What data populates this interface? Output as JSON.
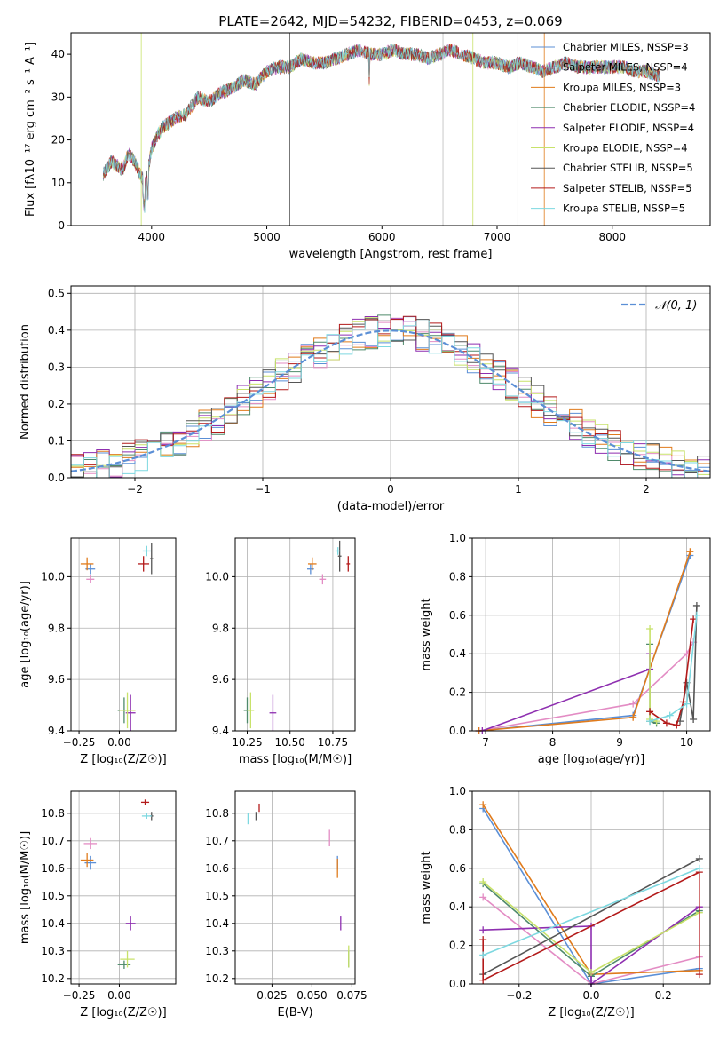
{
  "figure_title": "PLATE=2642, MJD=54232, FIBERID=0453, z=0.069",
  "colors": {
    "Chabrier MILES": "#5b8fd6",
    "Salpeter MILES": "#e38cc4",
    "Kroupa MILES": "#e07b1c",
    "Chabrier ELODIE": "#4f8a6b",
    "Salpeter ELODIE": "#8e2fb0",
    "Kroupa ELODIE": "#c8e26a",
    "Chabrier STELIB": "#555555",
    "Salpeter STELIB": "#b31a1a",
    "Kroupa STELIB": "#7dd8e0",
    "normal": "#5b8fd6"
  },
  "chart_data": [
    {
      "type": "line",
      "title": "PLATE=2642, MJD=54232, FIBERID=0453, z=0.069",
      "xlabel": "wavelength [Angstrom, rest frame]",
      "ylabel": "Flux [fλ10⁻¹⁷ erg cm⁻² s⁻¹ A⁻¹]",
      "xlim": [
        3300,
        8850
      ],
      "ylim": [
        0,
        45
      ],
      "xticks": [
        "4000",
        "5000",
        "6000",
        "7000",
        "8000"
      ],
      "yticks": [
        "0",
        "10",
        "20",
        "30",
        "40"
      ],
      "legend_placement": "upper-right",
      "legend": [
        "Chabrier MILES, NSSP=3",
        "Salpeter MILES, NSSP=4",
        "Kroupa MILES, NSSP=3",
        "Chabrier ELODIE, NSSP=4",
        "Salpeter ELODIE, NSSP=4",
        "Kroupa ELODIE, NSSP=4",
        "Chabrier STELIB, NSSP=5",
        "Salpeter STELIB, NSSP=5",
        "Kroupa STELIB, NSSP=5"
      ],
      "spectrum": {
        "x": [
          3580,
          3650,
          3700,
          3750,
          3800,
          3850,
          3900,
          3950,
          4000,
          4050,
          4100,
          4200,
          4300,
          4400,
          4500,
          4600,
          4700,
          4800,
          4900,
          5000,
          5100,
          5200,
          5300,
          5400,
          5500,
          5600,
          5700,
          5800,
          5900,
          6000,
          6100,
          6200,
          6300,
          6400,
          6500,
          6600,
          6700,
          6800,
          6900,
          7000,
          7100,
          7200,
          7300,
          7400,
          7500,
          7600,
          7700,
          7800,
          7900,
          8000,
          8100,
          8200,
          8300,
          8400
        ],
        "y": [
          12,
          15,
          14,
          13,
          17,
          15,
          12,
          10,
          18,
          21,
          23,
          25,
          26,
          30,
          29,
          31,
          32,
          34,
          33,
          36,
          37,
          37,
          39,
          38,
          38,
          39,
          40,
          41,
          40,
          40,
          41,
          40,
          40,
          39,
          40,
          41,
          40,
          39,
          38,
          38,
          37,
          38,
          37,
          36,
          37,
          38,
          37,
          37,
          37,
          37,
          37,
          36,
          36,
          35
        ]
      }
    },
    {
      "type": "histogram",
      "xlabel": "(data-model)/error",
      "ylabel": "Normed distribution",
      "xlim": [
        -2.5,
        2.5
      ],
      "ylim": [
        0,
        0.52
      ],
      "xticks": [
        "−2",
        "−1",
        "0",
        "1",
        "2"
      ],
      "yticks": [
        "0.0",
        "0.1",
        "0.2",
        "0.3",
        "0.4",
        "0.5"
      ],
      "grid": true,
      "legend_placement": "upper-right",
      "legend": [
        "𝒩(0, 1)"
      ],
      "bin_width": 0.1
    },
    {
      "type": "scatter",
      "xlabel": "Z [log₁₀(Z/Z☉)]",
      "ylabel": "age  [log₁₀(age/yr)]",
      "xlim": [
        -0.3,
        0.35
      ],
      "ylim": [
        9.4,
        10.15
      ],
      "xticks": [
        "−0.25",
        "0.00"
      ],
      "yticks": [
        "9.4",
        "9.6",
        "9.8",
        "10.0"
      ],
      "grid": true,
      "points": [
        {
          "s": "Chabrier MILES",
          "x": -0.18,
          "y": 10.03,
          "xe": 0.06,
          "ye": 0.04
        },
        {
          "s": "Salpeter MILES",
          "x": -0.18,
          "y": 9.99,
          "xe": 0.05,
          "ye": 0.03
        },
        {
          "s": "Kroupa MILES",
          "x": -0.2,
          "y": 10.05,
          "xe": 0.08,
          "ye": 0.05
        },
        {
          "s": "Chabrier ELODIE",
          "x": 0.03,
          "y": 9.48,
          "xe": 0.08,
          "ye": 0.1
        },
        {
          "s": "Salpeter ELODIE",
          "x": 0.07,
          "y": 9.47,
          "xe": 0.06,
          "ye": 0.14
        },
        {
          "s": "Kroupa ELODIE",
          "x": 0.05,
          "y": 9.48,
          "xe": 0.1,
          "ye": 0.14
        },
        {
          "s": "Chabrier STELIB",
          "x": 0.2,
          "y": 10.07,
          "xe": 0.02,
          "ye": 0.12
        },
        {
          "s": "Salpeter STELIB",
          "x": 0.15,
          "y": 10.05,
          "xe": 0.07,
          "ye": 0.06
        },
        {
          "s": "Kroupa STELIB",
          "x": 0.17,
          "y": 10.1,
          "xe": 0.05,
          "ye": 0.04
        }
      ]
    },
    {
      "type": "scatter",
      "xlabel": "mass [log₁₀(M/M☉)]",
      "ylabel": "",
      "xlim": [
        10.18,
        10.88
      ],
      "ylim": [
        9.4,
        10.15
      ],
      "xticks": [
        "10.25",
        "10.50",
        "10.75"
      ],
      "yticks": [
        "9.4",
        "9.6",
        "9.8",
        "10.0"
      ],
      "grid": true,
      "points": [
        {
          "s": "Chabrier MILES",
          "x": 10.62,
          "y": 10.03,
          "xe": 0.04,
          "ye": 0.04
        },
        {
          "s": "Salpeter MILES",
          "x": 10.69,
          "y": 9.99,
          "xe": 0.04,
          "ye": 0.04
        },
        {
          "s": "Kroupa MILES",
          "x": 10.63,
          "y": 10.05,
          "xe": 0.05,
          "ye": 0.05
        },
        {
          "s": "Chabrier ELODIE",
          "x": 10.25,
          "y": 9.48,
          "xe": 0.04,
          "ye": 0.1
        },
        {
          "s": "Salpeter ELODIE",
          "x": 10.4,
          "y": 9.47,
          "xe": 0.04,
          "ye": 0.14
        },
        {
          "s": "Kroupa ELODIE",
          "x": 10.27,
          "y": 9.48,
          "xe": 0.04,
          "ye": 0.14
        },
        {
          "s": "Chabrier STELIB",
          "x": 10.79,
          "y": 10.08,
          "xe": 0.02,
          "ye": 0.12
        },
        {
          "s": "Salpeter STELIB",
          "x": 10.84,
          "y": 10.05,
          "xe": 0.02,
          "ye": 0.06
        },
        {
          "s": "Kroupa STELIB",
          "x": 10.78,
          "y": 10.1,
          "xe": 0.03,
          "ye": 0.03
        }
      ]
    },
    {
      "type": "line",
      "xlabel": "age  [log₁₀(age/yr)]",
      "ylabel": "mass weight",
      "xlim": [
        6.8,
        10.35
      ],
      "ylim": [
        0,
        1.0
      ],
      "xticks": [
        "7",
        "8",
        "9",
        "10"
      ],
      "yticks": [
        "0.0",
        "0.2",
        "0.4",
        "0.6",
        "0.8",
        "1.0"
      ],
      "grid": true,
      "series": [
        {
          "s": "Chabrier MILES",
          "x": [
            6.9,
            9.2,
            10.05
          ],
          "y": [
            0.0,
            0.08,
            0.91
          ]
        },
        {
          "s": "Salpeter MILES",
          "x": [
            6.9,
            9.2,
            10.0,
            10.1
          ],
          "y": [
            0.0,
            0.14,
            0.4,
            0.46
          ]
        },
        {
          "s": "Kroupa MILES",
          "x": [
            6.9,
            9.2,
            10.05
          ],
          "y": [
            0.0,
            0.07,
            0.93
          ]
        },
        {
          "s": "Chabrier ELODIE",
          "x": [
            9.45,
            9.45,
            9.55
          ],
          "y": [
            0.45,
            0.05,
            0.04
          ]
        },
        {
          "s": "Salpeter ELODIE",
          "x": [
            6.95,
            9.45,
            9.45
          ],
          "y": [
            0.0,
            0.32,
            0.4
          ]
        },
        {
          "s": "Kroupa ELODIE",
          "x": [
            9.45,
            9.45,
            9.55
          ],
          "y": [
            0.53,
            0.06,
            0.05
          ]
        },
        {
          "s": "Chabrier STELIB",
          "x": [
            9.9,
            10.0,
            10.1,
            10.15
          ],
          "y": [
            0.05,
            0.25,
            0.06,
            0.65
          ]
        },
        {
          "s": "Salpeter STELIB",
          "x": [
            9.45,
            9.7,
            9.85,
            9.95,
            10.1
          ],
          "y": [
            0.1,
            0.04,
            0.03,
            0.15,
            0.58
          ]
        },
        {
          "s": "Kroupa STELIB",
          "x": [
            9.45,
            9.75,
            10.0,
            10.15
          ],
          "y": [
            0.05,
            0.08,
            0.14,
            0.6
          ]
        }
      ]
    },
    {
      "type": "scatter",
      "xlabel": "Z [log₁₀(Z/Z☉)]",
      "ylabel": "mass [log₁₀(M/M☉)]",
      "xlim": [
        -0.3,
        0.35
      ],
      "ylim": [
        10.18,
        10.88
      ],
      "xticks": [
        "−0.25",
        "0.00"
      ],
      "yticks": [
        "10.2",
        "10.3",
        "10.4",
        "10.5",
        "10.6",
        "10.7",
        "10.8"
      ],
      "grid": true,
      "points": [
        {
          "s": "Chabrier MILES",
          "x": -0.18,
          "y": 10.62,
          "xe": 0.07,
          "ye": 0.05
        },
        {
          "s": "Salpeter MILES",
          "x": -0.18,
          "y": 10.69,
          "xe": 0.08,
          "ye": 0.04
        },
        {
          "s": "Kroupa MILES",
          "x": -0.2,
          "y": 10.63,
          "xe": 0.08,
          "ye": 0.05
        },
        {
          "s": "Chabrier ELODIE",
          "x": 0.03,
          "y": 10.25,
          "xe": 0.08,
          "ye": 0.03
        },
        {
          "s": "Salpeter ELODIE",
          "x": 0.07,
          "y": 10.4,
          "xe": 0.06,
          "ye": 0.05
        },
        {
          "s": "Kroupa ELODIE",
          "x": 0.05,
          "y": 10.27,
          "xe": 0.09,
          "ye": 0.06
        },
        {
          "s": "Chabrier STELIB",
          "x": 0.2,
          "y": 10.79,
          "xe": 0.02,
          "ye": 0.03
        },
        {
          "s": "Salpeter STELIB",
          "x": 0.16,
          "y": 10.84,
          "xe": 0.05,
          "ye": 0.02
        },
        {
          "s": "Kroupa STELIB",
          "x": 0.17,
          "y": 10.79,
          "xe": 0.06,
          "ye": 0.02
        }
      ]
    },
    {
      "type": "scatter",
      "xlabel": "E(B-V)",
      "ylabel": "",
      "xlim": [
        0.002,
        0.077
      ],
      "ylim": [
        10.18,
        10.88
      ],
      "xticks": [
        "0.025",
        "0.050",
        "0.075"
      ],
      "yticks": [
        "10.2",
        "10.3",
        "10.4",
        "10.5",
        "10.6",
        "10.7",
        "10.8"
      ],
      "grid": true,
      "points": [
        {
          "s": "Chabrier MILES",
          "x": 0.066,
          "y": 10.62,
          "xe": 0,
          "ye": 0.05
        },
        {
          "s": "Salpeter MILES",
          "x": 0.061,
          "y": 10.71,
          "xe": 0,
          "ye": 0.06
        },
        {
          "s": "Kroupa MILES",
          "x": 0.066,
          "y": 10.6,
          "xe": 0,
          "ye": 0.07
        },
        {
          "s": "Chabrier ELODIE",
          "x": 0.073,
          "y": 10.27,
          "xe": 0,
          "ye": 0.06
        },
        {
          "s": "Salpeter ELODIE",
          "x": 0.068,
          "y": 10.4,
          "xe": 0,
          "ye": 0.05
        },
        {
          "s": "Kroupa ELODIE",
          "x": 0.073,
          "y": 10.28,
          "xe": 0,
          "ye": 0.08
        },
        {
          "s": "Chabrier STELIB",
          "x": 0.015,
          "y": 10.79,
          "xe": 0,
          "ye": 0.03
        },
        {
          "s": "Salpeter STELIB",
          "x": 0.017,
          "y": 10.82,
          "xe": 0,
          "ye": 0.03
        },
        {
          "s": "Kroupa STELIB",
          "x": 0.01,
          "y": 10.78,
          "xe": 0,
          "ye": 0.04
        }
      ]
    },
    {
      "type": "line",
      "xlabel": "Z [log₁₀(Z/Z☉)]",
      "ylabel": "mass weight",
      "xlim": [
        -0.33,
        0.33
      ],
      "ylim": [
        0,
        1.0
      ],
      "xticks": [
        "−0.2",
        "0.0",
        "0.2"
      ],
      "yticks": [
        "0.0",
        "0.2",
        "0.4",
        "0.6",
        "0.8",
        "1.0"
      ],
      "grid": true,
      "series": [
        {
          "s": "Chabrier MILES",
          "x": [
            -0.3,
            0.0,
            0.3
          ],
          "y": [
            0.91,
            0.0,
            0.08
          ]
        },
        {
          "s": "Salpeter MILES",
          "x": [
            -0.3,
            0.0,
            0.3,
            0.3
          ],
          "y": [
            0.45,
            0.0,
            0.14,
            0.4
          ]
        },
        {
          "s": "Kroupa MILES",
          "x": [
            -0.3,
            0.0,
            0.3
          ],
          "y": [
            0.93,
            0.05,
            0.07
          ]
        },
        {
          "s": "Chabrier ELODIE",
          "x": [
            -0.3,
            0.0,
            0.3
          ],
          "y": [
            0.52,
            0.04,
            0.38
          ]
        },
        {
          "s": "Salpeter ELODIE",
          "x": [
            -0.3,
            0.0,
            0.0,
            0.0,
            0.3
          ],
          "y": [
            0.28,
            0.3,
            0.02,
            0.0,
            0.4
          ]
        },
        {
          "s": "Kroupa ELODIE",
          "x": [
            -0.3,
            0.0,
            0.3
          ],
          "y": [
            0.53,
            0.06,
            0.37
          ]
        },
        {
          "s": "Chabrier STELIB",
          "x": [
            -0.3,
            0.3
          ],
          "y": [
            0.05,
            0.65
          ]
        },
        {
          "s": "Salpeter STELIB",
          "x": [
            -0.3,
            -0.3,
            0.3,
            0.3
          ],
          "y": [
            0.23,
            0.02,
            0.58,
            0.05
          ]
        },
        {
          "s": "Kroupa STELIB",
          "x": [
            -0.3,
            0.3
          ],
          "y": [
            0.15,
            0.6
          ]
        }
      ]
    }
  ]
}
